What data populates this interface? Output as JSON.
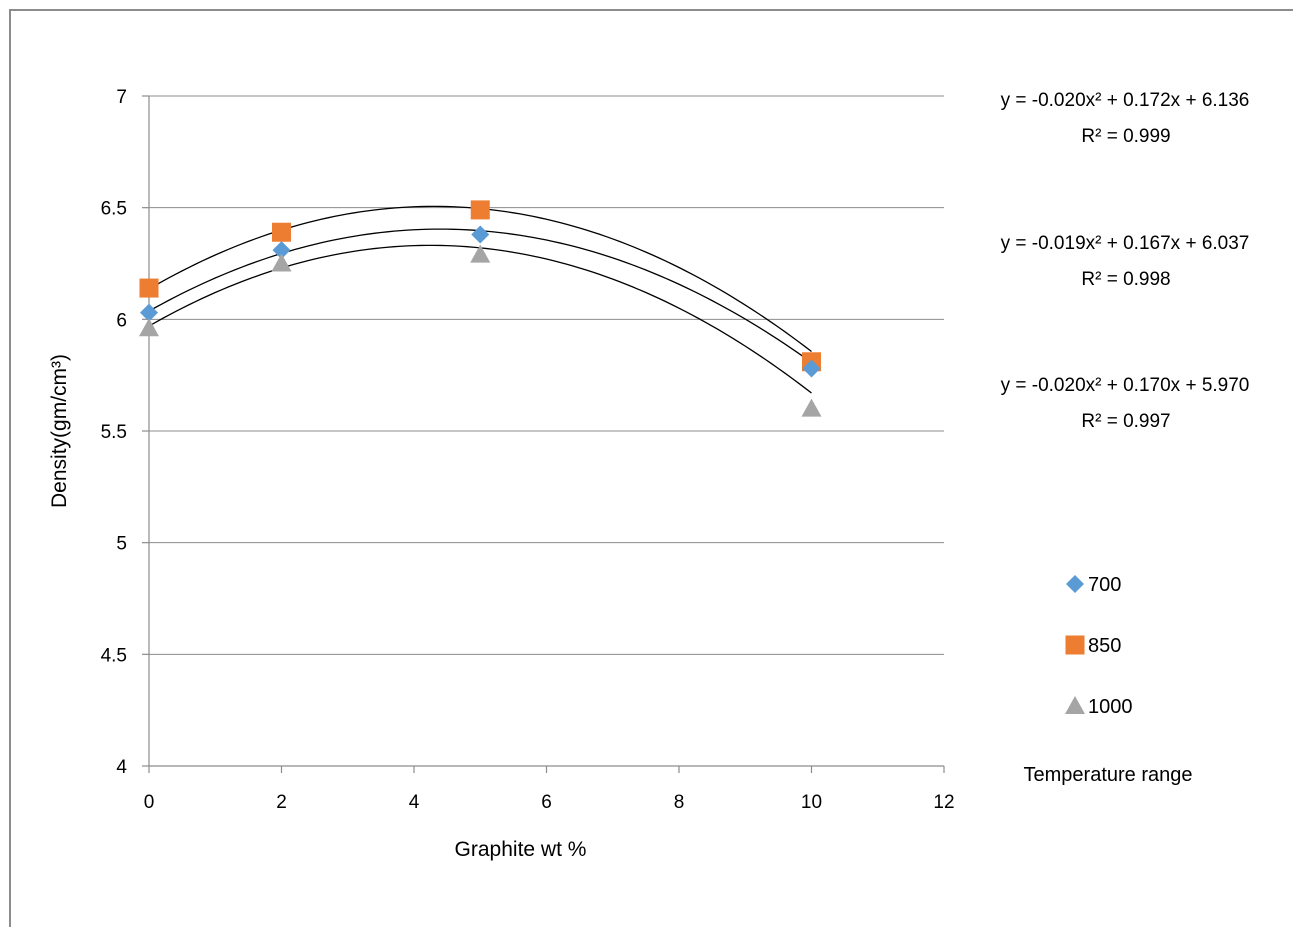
{
  "chart_data": {
    "type": "scatter",
    "title": "",
    "xlabel": "Graphite wt %",
    "ylabel": "Density(gm/cm³)",
    "xlim": [
      0,
      12
    ],
    "ylim": [
      4,
      7
    ],
    "x_ticks": [
      "0",
      "2",
      "4",
      "6",
      "8",
      "10",
      "12"
    ],
    "y_ticks": [
      "4",
      "4.5",
      "5",
      "5.5",
      "6",
      "6.5",
      "7"
    ],
    "grid": "horizontal",
    "legend": {
      "title": "Temperature range",
      "placement": "right"
    },
    "series": [
      {
        "name": "700",
        "marker": "diamond",
        "color": "#5b9bd5",
        "x": [
          0,
          2,
          5,
          10
        ],
        "y": [
          6.03,
          6.31,
          6.38,
          5.78
        ],
        "trendline": {
          "type": "polynomial",
          "coef": [
            -0.019,
            0.167,
            6.037
          ],
          "equation_text": "y = -0.019x² + 0.167x + 6.037",
          "r2_text": "R² = 0.998"
        }
      },
      {
        "name": "850",
        "marker": "square",
        "color": "#ed7d31",
        "x": [
          0,
          2,
          5,
          10
        ],
        "y": [
          6.14,
          6.39,
          6.49,
          5.81
        ],
        "trendline": {
          "type": "polynomial",
          "coef": [
            -0.02,
            0.172,
            6.136
          ],
          "equation_text": "y = -0.020x² + 0.172x + 6.136",
          "r2_text": "R² = 0.999"
        }
      },
      {
        "name": "1000",
        "marker": "triangle",
        "color": "#a5a5a5",
        "x": [
          0,
          2,
          5,
          10
        ],
        "y": [
          5.96,
          6.25,
          6.29,
          5.6
        ],
        "trendline": {
          "type": "polynomial",
          "coef": [
            -0.02,
            0.17,
            5.97
          ],
          "equation_text": "y = -0.020x² + 0.170x + 5.970",
          "r2_text": "R² = 0.997"
        }
      }
    ],
    "equation_order": [
      "850",
      "700",
      "1000"
    ]
  }
}
